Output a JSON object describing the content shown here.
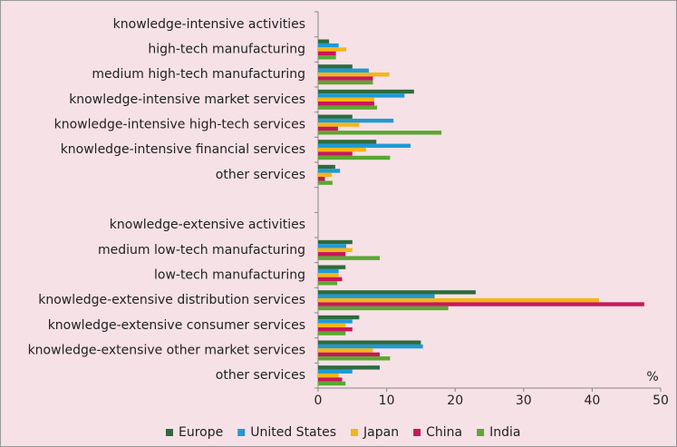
{
  "chart_data": {
    "type": "bar",
    "orientation": "horizontal",
    "categories": [
      "knowledge-intensive activities",
      "high-tech manufacturing",
      "medium high-tech manufacturing",
      "knowledge-intensive market services",
      "knowledge-intensive high-tech services",
      "knowledge-intensive financial services",
      "other services",
      null,
      "knowledge-extensive activities",
      "medium low-tech manufacturing",
      "low-tech manufacturing",
      "knowledge-extensive distribution services",
      "knowledge-extensive consumer services",
      "knowledge-extensive other market services",
      "other services"
    ],
    "series": [
      {
        "name": "Europe",
        "color": "#2e6b3e",
        "values": [
          null,
          1.6,
          5.0,
          14.0,
          5.0,
          8.5,
          2.5,
          null,
          null,
          5.0,
          4.0,
          23.0,
          6.0,
          15.0,
          9.0
        ]
      },
      {
        "name": "United States",
        "color": "#1e9ad6",
        "values": [
          null,
          3.0,
          7.4,
          12.6,
          11.0,
          13.5,
          3.2,
          null,
          null,
          4.1,
          3.0,
          17.0,
          5.0,
          15.3,
          5.0
        ]
      },
      {
        "name": "Japan",
        "color": "#f7b515",
        "values": [
          null,
          4.1,
          10.4,
          8.2,
          6.0,
          7.0,
          2.0,
          null,
          null,
          5.0,
          3.0,
          41.0,
          4.0,
          8.0,
          3.0
        ]
      },
      {
        "name": "China",
        "color": "#c8175c",
        "values": [
          null,
          2.6,
          8.0,
          8.2,
          2.9,
          5.0,
          1.0,
          null,
          null,
          4.0,
          3.5,
          47.6,
          5.0,
          9.0,
          3.5
        ]
      },
      {
        "name": "India",
        "color": "#5aa832",
        "values": [
          null,
          2.6,
          8.0,
          8.6,
          18.0,
          10.5,
          2.1,
          null,
          null,
          9.0,
          2.8,
          19.0,
          4.0,
          10.5,
          4.0
        ]
      }
    ],
    "xlabel": "%",
    "xlim": [
      0,
      50
    ],
    "xticks": [
      0,
      10,
      20,
      30,
      40,
      50
    ]
  }
}
